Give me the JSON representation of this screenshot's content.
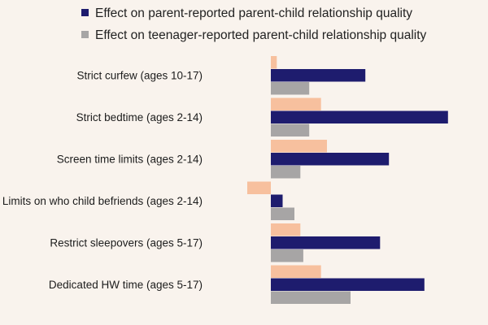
{
  "chart_data": {
    "type": "bar",
    "orientation": "horizontal",
    "title": "",
    "xlabel": "",
    "ylabel": "",
    "xlim": [
      -0.08,
      0.62
    ],
    "grid": false,
    "legend_position": "top",
    "categories": [
      "Strict curfew (ages 10-17)",
      "Strict bedtime (ages 2-14)",
      "Screen time limits (ages 2-14)",
      "Limits on who child befriends (ages 2-14)",
      "Restrict sleepovers (ages 5-17)",
      "Dedicated HW time (ages 5-17)"
    ],
    "series": [
      {
        "name": "",
        "color": "#f7c09e",
        "values": [
          0.02,
          0.17,
          0.19,
          -0.08,
          0.1,
          0.17
        ]
      },
      {
        "name": "Effect on parent-reported parent-child relationship quality",
        "color": "#1e1c6e",
        "values": [
          0.32,
          0.6,
          0.4,
          0.04,
          0.37,
          0.52
        ]
      },
      {
        "name": "Effect on teenager-reported parent-child relationship quality",
        "color": "#a7a5a5",
        "values": [
          0.13,
          0.13,
          0.1,
          0.08,
          0.11,
          0.27
        ]
      }
    ]
  }
}
